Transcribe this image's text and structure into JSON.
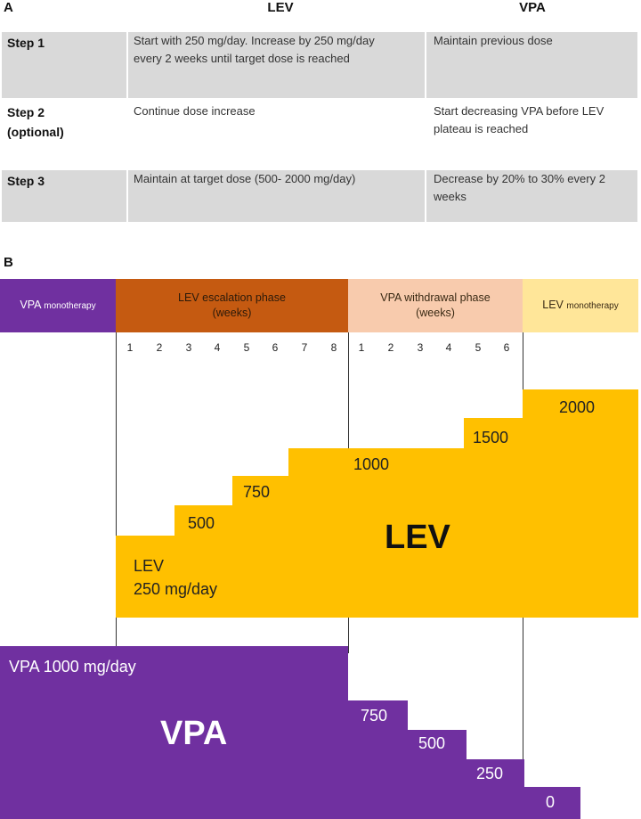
{
  "panel_a": {
    "label": "A",
    "col_lev": "LEV",
    "col_vpa": "VPA",
    "rows": [
      {
        "step": "Step 1",
        "lev_line1": "Start with 250 mg/day. Increase by 250 mg/day",
        "lev_line2": "every 2 weeks until target dose is reached",
        "vpa_line1": "Maintain previous dose",
        "vpa_line2": ""
      },
      {
        "step": "Step 2",
        "step_sub": "(optional)",
        "lev_line1": "Continue dose increase",
        "lev_line2": "",
        "vpa_line1": "Start decreasing VPA before LEV",
        "vpa_line2": "plateau is reached"
      },
      {
        "step": "Step 3",
        "lev_line1": "Maintain at target dose (500- 2000 mg/day)",
        "lev_line2": "",
        "vpa_line1": "Decrease by 20% to 30% every 2",
        "vpa_line2": "weeks"
      }
    ]
  },
  "panel_b": {
    "label": "B",
    "phases": {
      "vpa_mono_main": "VPA",
      "vpa_mono_small": "monotherapy",
      "lev_esc_line1": "LEV escalation phase",
      "lev_esc_line2": "(weeks)",
      "vpa_wd_line1": "VPA withdrawal phase",
      "vpa_wd_line2": "(weeks)",
      "lev_mono_main": "LEV",
      "lev_mono_small": "monotherapy"
    },
    "colors": {
      "vpa": "#7030a0",
      "lev": "#ffc000",
      "lev_esc": "#c55a11",
      "vpa_wd": "#f8cbad",
      "lev_mono": "#ffe699"
    },
    "esc_weeks": [
      "1",
      "2",
      "3",
      "4",
      "5",
      "6",
      "7",
      "8"
    ],
    "wd_weeks": [
      "1",
      "2",
      "3",
      "4",
      "5",
      "6"
    ],
    "lev_steps": [
      "250",
      "500",
      "750",
      "1000",
      "1500",
      "2000"
    ],
    "lev_first_label_1": "LEV",
    "lev_first_label_2": "250 mg/day",
    "lev_label_500": "500",
    "lev_label_750": "750",
    "lev_label_1000": "1000",
    "lev_label_1500": "1500",
    "lev_label_2000": "2000",
    "lev_big": "LEV",
    "vpa_first_label": "VPA 1000 mg/day",
    "vpa_label_750": "750",
    "vpa_label_500": "500",
    "vpa_label_250": "250",
    "vpa_label_0": "0",
    "vpa_big": "VPA"
  }
}
